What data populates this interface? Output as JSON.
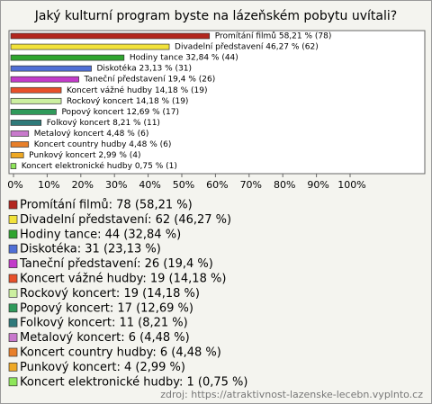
{
  "chart_data": {
    "type": "hbar",
    "title": "Jaký kulturní program byste na lázeňském pobytu uvítali?",
    "categories": [
      "Promítání filmů",
      "Divadelní představení",
      "Hodiny tance",
      "Diskotéka",
      "Taneční představení",
      "Koncert vážné hudby",
      "Rockový koncert",
      "Popový koncert",
      "Folkový koncert",
      "Metalový koncert",
      "Koncert country hudby",
      "Punkový koncert",
      "Koncert elektronické hudby"
    ],
    "values": [
      58.21,
      46.27,
      32.84,
      23.13,
      19.4,
      14.18,
      14.18,
      12.69,
      8.21,
      4.48,
      4.48,
      2.99,
      0.75
    ],
    "value_labels": [
      "Promítání filmů 58,21 % (78)",
      "Divadelní představení 46,27 % (62)",
      "Hodiny tance 32,84 % (44)",
      "Diskotéka 23,13 % (31)",
      "Taneční představení 19,4 % (26)",
      "Koncert vážné hudby 14,18 % (19)",
      "Rockový koncert 14,18 % (19)",
      "Popový koncert 12,69 % (17)",
      "Folkový koncert 8,21 % (11)",
      "Metalový koncert 4,48 % (6)",
      "Koncert country hudby 4,48 % (6)",
      "Punkový koncert 2,99 % (4)",
      "Koncert elektronické hudby 0,75 % (1)"
    ],
    "colors": [
      "#b3261e",
      "#f2e23a",
      "#2fa52f",
      "#4f6fd6",
      "#c23bc9",
      "#e8502a",
      "#ccf0a0",
      "#2f9a5a",
      "#2f7a7a",
      "#c879cc",
      "#e87f2a",
      "#eea824",
      "#8ee65a"
    ],
    "legend": [
      "Promítání filmů: 78 (58,21 %)",
      "Divadelní představení: 62 (46,27 %)",
      "Hodiny tance: 44 (32,84 %)",
      "Diskotéka: 31 (23,13 %)",
      "Taneční představení: 26 (19,4 %)",
      "Koncert vážné hudby: 19 (14,18 %)",
      "Rockový koncert: 19 (14,18 %)",
      "Popový koncert: 17 (12,69 %)",
      "Folkový koncert: 11 (8,21 %)",
      "Metalový koncert: 6 (4,48 %)",
      "Koncert country hudby: 6 (4,48 %)",
      "Punkový koncert: 4 (2,99 %)",
      "Koncert elektronické hudby: 1 (0,75 %)"
    ],
    "xlim": [
      0,
      100
    ],
    "xticks": [
      {
        "value": 0,
        "label": "0%"
      },
      {
        "value": 10,
        "label": "10%"
      },
      {
        "value": 20,
        "label": "20%"
      },
      {
        "value": 30,
        "label": "30%"
      },
      {
        "value": 40,
        "label": "40%"
      },
      {
        "value": 50,
        "label": "50%"
      },
      {
        "value": 60,
        "label": "60%"
      },
      {
        "value": 70,
        "label": "70%"
      },
      {
        "value": 80,
        "label": "80%"
      },
      {
        "value": 90,
        "label": "90%"
      },
      {
        "value": 100,
        "label": "100%"
      }
    ],
    "source": "zdroj: https://atraktivnost-lazenske-lecebn.vyplnto.cz"
  }
}
